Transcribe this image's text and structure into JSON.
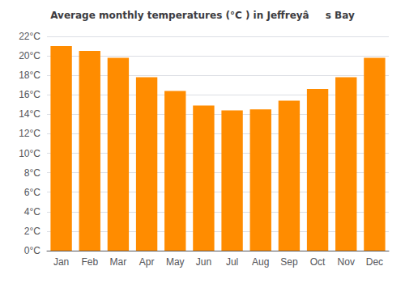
{
  "chart_data": {
    "type": "bar",
    "title": "Average monthly temperatures (°C ) in Jeffreyâs Bay",
    "categories": [
      "Jan",
      "Feb",
      "Mar",
      "Apr",
      "May",
      "Jun",
      "Jul",
      "Aug",
      "Sep",
      "Oct",
      "Nov",
      "Dec"
    ],
    "values": [
      21.0,
      20.5,
      19.8,
      17.8,
      16.4,
      14.9,
      14.4,
      14.5,
      15.4,
      16.6,
      17.8,
      19.8
    ],
    "color": "#FF8C00",
    "ylim": [
      0,
      22
    ],
    "yticks": [
      {
        "value": 0,
        "label": "0°C"
      },
      {
        "value": 2,
        "label": "2°C"
      },
      {
        "value": 4,
        "label": "4°C"
      },
      {
        "value": 6,
        "label": "6°C"
      },
      {
        "value": 8,
        "label": "8°C"
      },
      {
        "value": 10,
        "label": "10°C"
      },
      {
        "value": 12,
        "label": "12°C"
      },
      {
        "value": 14,
        "label": "14°C"
      },
      {
        "value": 16,
        "label": "16°C"
      },
      {
        "value": 18,
        "label": "18°C"
      },
      {
        "value": 20,
        "label": "20°C"
      },
      {
        "value": 22,
        "label": "22°C"
      }
    ],
    "grid": true
  }
}
